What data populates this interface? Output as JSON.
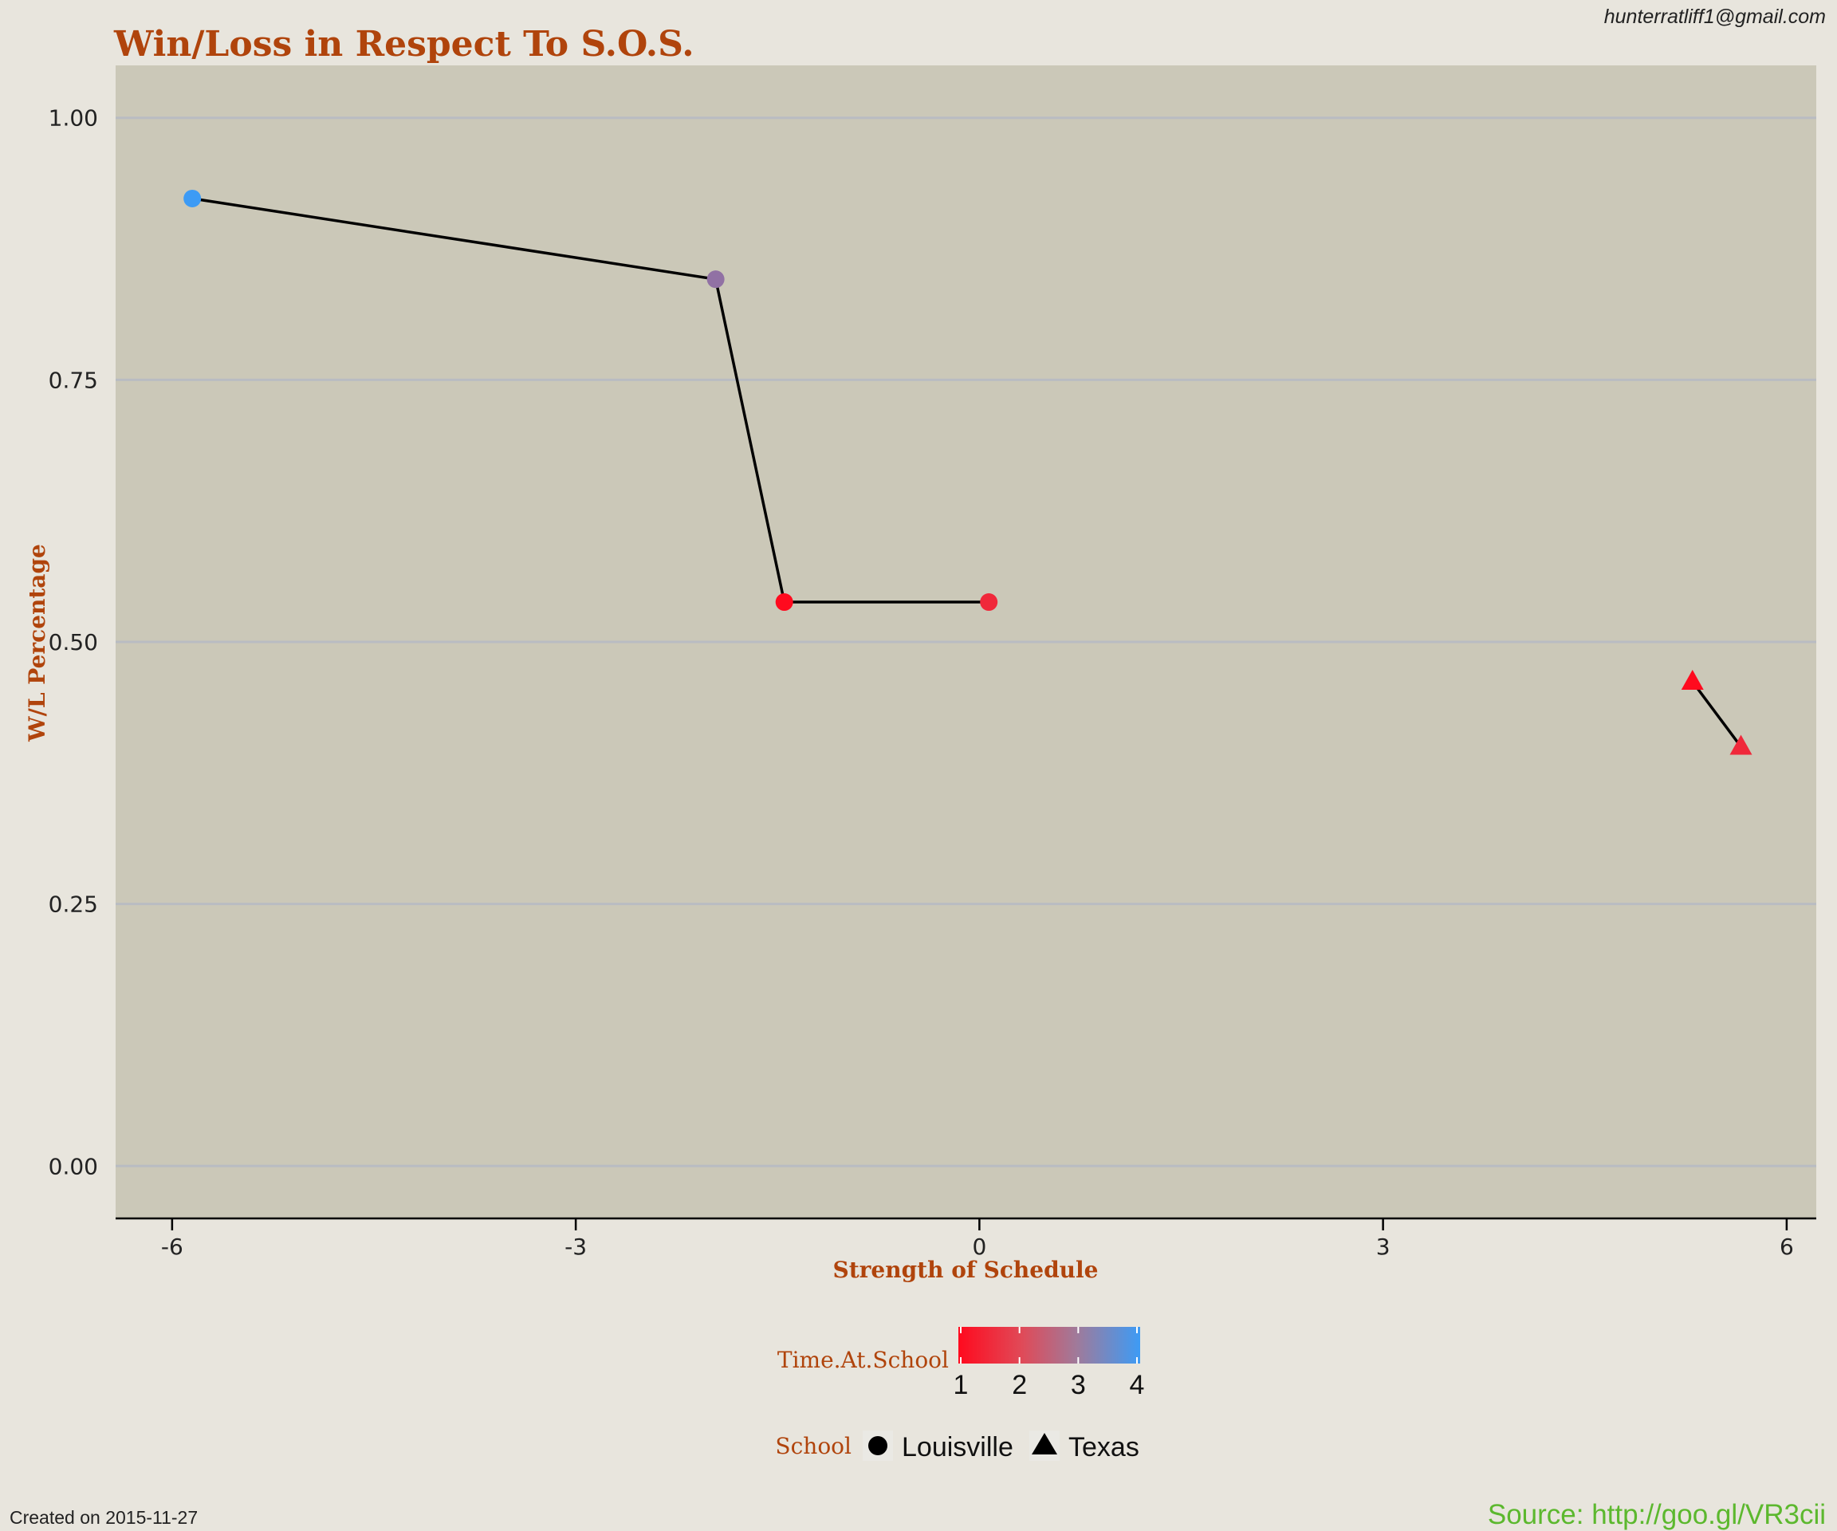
{
  "author_email": "hunterratliff1@gmail.com",
  "created_on": "Created on 2015-11-27",
  "source": "Source: http://goo.gl/VR3cii",
  "colors": {
    "title": "#b0440c",
    "panel": "#cbc8b8",
    "background": "#e8e5dd",
    "grid": "#b9bcc2",
    "line": "#000000",
    "source": "#5cb82e",
    "gradient_low": "#ff0a1e",
    "gradient_high": "#3d9bf5"
  },
  "chart_data": {
    "type": "scatter",
    "title": "Win/Loss in Respect To S.O.S.",
    "xlabel": "Strength of Schedule",
    "ylabel": "W/L Percentage",
    "xlim": [
      -6.42,
      6.22
    ],
    "ylim": [
      -0.05,
      1.05
    ],
    "x_ticks": [
      -6,
      -3,
      0,
      3,
      6
    ],
    "y_ticks": [
      0,
      0.25,
      0.5,
      0.75,
      1
    ],
    "x_tick_labels": [
      "-6",
      "-3",
      "0",
      "3",
      "6"
    ],
    "y_tick_labels": [
      "0.00",
      "0.25",
      "0.50",
      "0.75",
      "1.00"
    ],
    "grid": "horizontal",
    "series": [
      {
        "name": "Louisville",
        "shape": "circle",
        "points": [
          {
            "x": 0.07,
            "y": 0.538,
            "time_at_school": 1.5
          },
          {
            "x": -1.45,
            "y": 0.538,
            "time_at_school": 1
          },
          {
            "x": -1.96,
            "y": 0.846,
            "time_at_school": 3
          },
          {
            "x": -5.85,
            "y": 0.923,
            "time_at_school": 4
          }
        ]
      },
      {
        "name": "Texas",
        "shape": "triangle",
        "points": [
          {
            "x": 5.3,
            "y": 0.462,
            "time_at_school": 1
          },
          {
            "x": 5.66,
            "y": 0.4,
            "time_at_school": 1.5
          }
        ]
      }
    ],
    "legend": {
      "placement": "bottom",
      "color_title": "Time.At.School",
      "color_ticks": [
        "1",
        "2",
        "3",
        "4"
      ],
      "color_range": [
        1,
        4
      ],
      "shape_title": "School",
      "shape_items": [
        {
          "label": "Louisville",
          "shape": "circle"
        },
        {
          "label": "Texas",
          "shape": "triangle"
        }
      ]
    }
  }
}
